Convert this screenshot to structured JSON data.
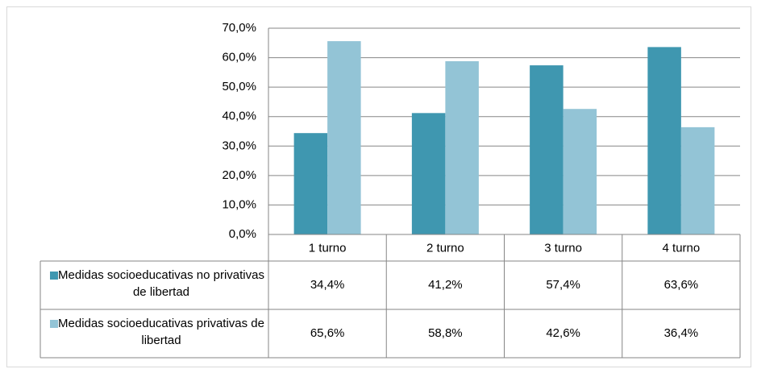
{
  "chart_data": {
    "type": "bar",
    "categories": [
      "1 turno",
      "2 turno",
      "3 turno",
      "4 turno"
    ],
    "series": [
      {
        "name": "Medidas socioeducativas no privativas de libertad",
        "color": "#3f97b0",
        "values": [
          34.4,
          41.2,
          57.4,
          63.6
        ],
        "value_labels": [
          "34,4%",
          "41,2%",
          "57,4%",
          "63,6%"
        ]
      },
      {
        "name": "Medidas socioeducativas privativas de libertad",
        "color": "#93c4d6",
        "values": [
          65.6,
          58.8,
          42.6,
          36.4
        ],
        "value_labels": [
          "65,6%",
          "58,8%",
          "42,6%",
          "36,4%"
        ]
      }
    ],
    "ylim": [
      0,
      70
    ],
    "yticks": [
      {
        "value": 0,
        "label": "0,0%"
      },
      {
        "value": 10,
        "label": "10,0%"
      },
      {
        "value": 20,
        "label": "20,0%"
      },
      {
        "value": 30,
        "label": "30,0%"
      },
      {
        "value": 40,
        "label": "40,0%"
      },
      {
        "value": 50,
        "label": "50,0%"
      },
      {
        "value": 60,
        "label": "60,0%"
      },
      {
        "value": 70,
        "label": "70,0%"
      }
    ],
    "grid": true
  }
}
